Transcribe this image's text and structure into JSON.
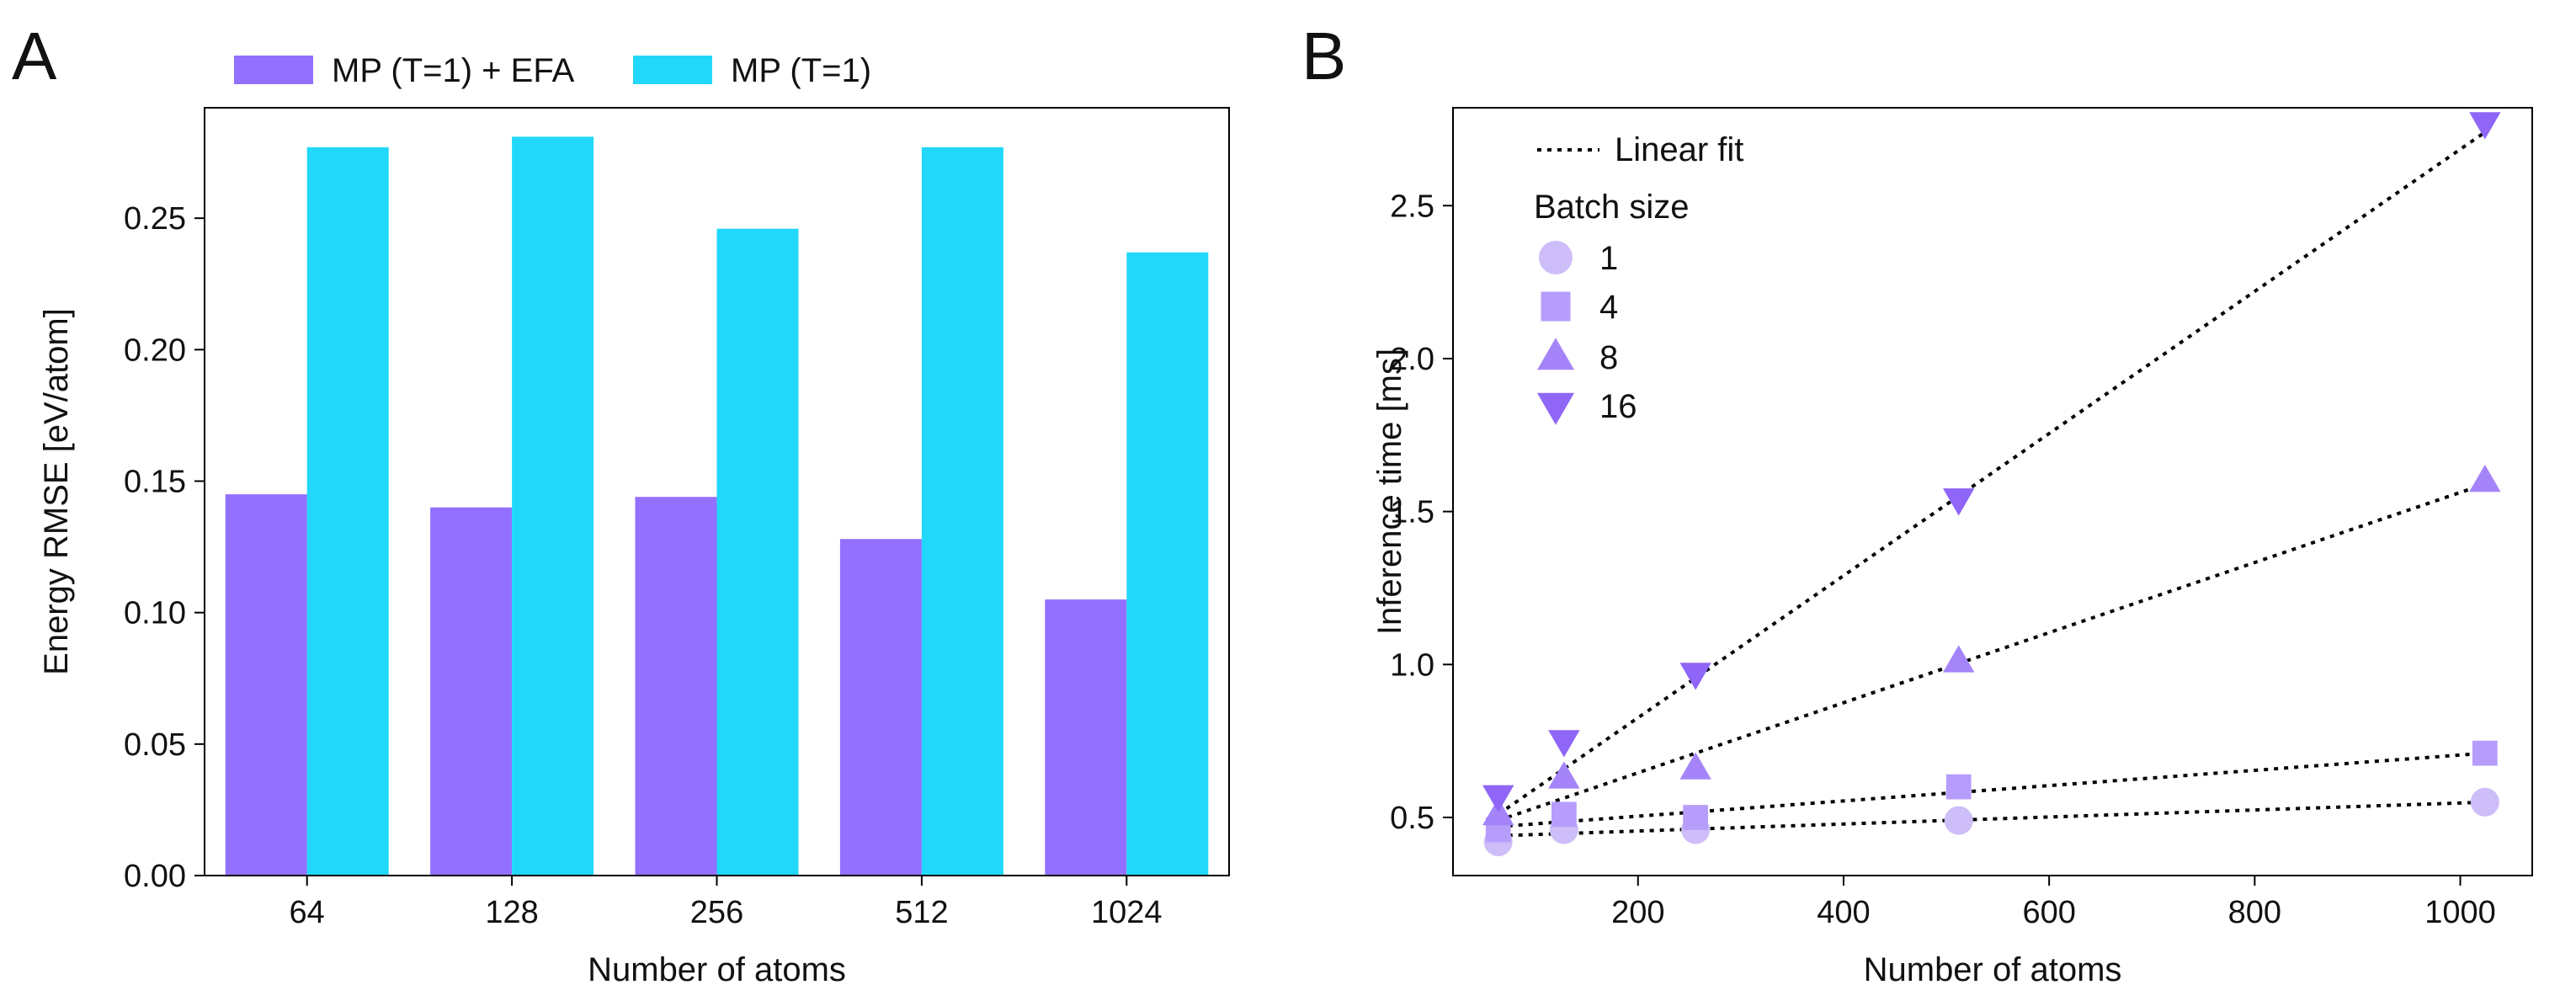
{
  "panels": [
    {
      "letter": "A"
    },
    {
      "letter": "B"
    }
  ],
  "colors": {
    "efa": "#9370FF",
    "mp": "#22D8FA",
    "batch_1": "#CDBDF8",
    "batch_4": "#B69DFB",
    "batch_8": "#A484F8",
    "batch_16": "#8F66F7",
    "fit": "#000000"
  },
  "chart_data": [
    {
      "type": "bar",
      "panel": "A",
      "categories": [
        "64",
        "128",
        "256",
        "512",
        "1024"
      ],
      "series": [
        {
          "name": "MP (T=1) + EFA",
          "values": [
            0.145,
            0.14,
            0.144,
            0.128,
            0.105
          ]
        },
        {
          "name": "MP (T=1)",
          "values": [
            0.277,
            0.281,
            0.246,
            0.277,
            0.237
          ]
        }
      ],
      "xlabel": "Number of atoms",
      "ylabel": "Energy RMSE [eV/atom]",
      "ylim": [
        0,
        0.292
      ],
      "yticks": [
        "0.00",
        "0.05",
        "0.10",
        "0.15",
        "0.20",
        "0.25"
      ],
      "legend_position": "top"
    },
    {
      "type": "scatter",
      "panel": "B",
      "xlabel": "Number of atoms",
      "ylabel": "Inference time [ms]",
      "xlim": [
        20,
        1070
      ],
      "ylim": [
        0.31,
        2.82
      ],
      "xticks": [
        "200",
        "400",
        "600",
        "800",
        "1000"
      ],
      "yticks": [
        "0.5",
        "1.0",
        "1.5",
        "2.0",
        "2.5"
      ],
      "legend": {
        "fit_label": "Linear fit",
        "title": "Batch size",
        "position": "top-left"
      },
      "series": [
        {
          "name": "1",
          "marker": "circle",
          "x": [
            64,
            128,
            256,
            512,
            1024
          ],
          "y": [
            0.42,
            0.46,
            0.46,
            0.49,
            0.55
          ],
          "fit": [
            0.44,
            0.55
          ]
        },
        {
          "name": "4",
          "marker": "square",
          "x": [
            64,
            128,
            256,
            512,
            1024
          ],
          "y": [
            0.46,
            0.51,
            0.5,
            0.6,
            0.71
          ],
          "fit": [
            0.47,
            0.71
          ]
        },
        {
          "name": "8",
          "marker": "triangle-up",
          "x": [
            64,
            128,
            256,
            512,
            1024
          ],
          "y": [
            0.51,
            0.63,
            0.66,
            1.01,
            1.6
          ],
          "fit": [
            0.49,
            1.59
          ]
        },
        {
          "name": "16",
          "marker": "triangle-down",
          "x": [
            64,
            128,
            256,
            512,
            1024
          ],
          "y": [
            0.57,
            0.75,
            0.97,
            1.54,
            2.77
          ],
          "fit": [
            0.51,
            2.74
          ]
        }
      ]
    }
  ]
}
